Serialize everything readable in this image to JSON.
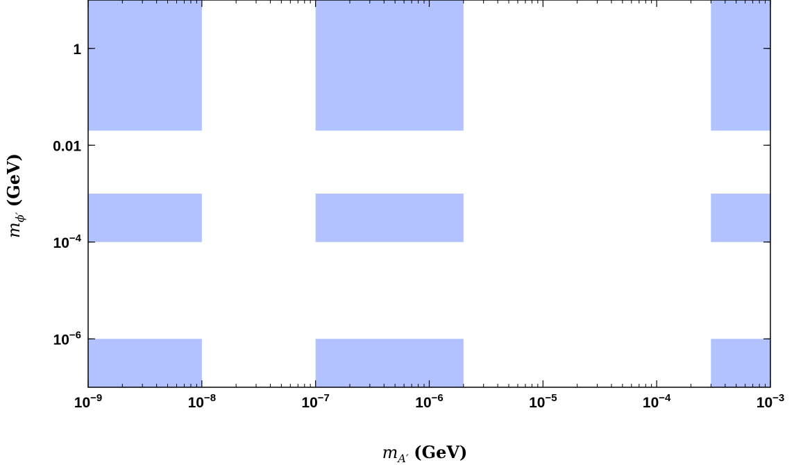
{
  "chart_data": {
    "type": "area",
    "title": "",
    "xlabel": {
      "symbol": "m",
      "subscript": "A′",
      "unit": "(GeV)"
    },
    "ylabel": {
      "symbol": "m",
      "subscript": "ϕ′",
      "unit": "(GeV)"
    },
    "x_scale": "log",
    "y_scale": "log",
    "xlim": [
      1e-09,
      0.001
    ],
    "ylim": [
      1e-07,
      10
    ],
    "grid": false,
    "x_ticks": [
      {
        "value": 1e-09,
        "base": "10",
        "exp": "−9"
      },
      {
        "value": 1e-08,
        "base": "10",
        "exp": "−8"
      },
      {
        "value": 1e-07,
        "base": "10",
        "exp": "−7"
      },
      {
        "value": 1e-06,
        "base": "10",
        "exp": "−6"
      },
      {
        "value": 1e-05,
        "base": "10",
        "exp": "−5"
      },
      {
        "value": 0.0001,
        "base": "10",
        "exp": "−4"
      },
      {
        "value": 0.001,
        "base": "10",
        "exp": "−3"
      }
    ],
    "y_ticks": [
      {
        "value": 1e-06,
        "base": "10",
        "exp": "−6"
      },
      {
        "value": 0.0001,
        "base": "10",
        "exp": "−4"
      },
      {
        "value": 0.01,
        "base": "0.01",
        "exp": ""
      },
      {
        "value": 1,
        "base": "1",
        "exp": ""
      }
    ],
    "fill_color": "#b2c1ff",
    "regions": [
      {
        "x": [
          1e-09,
          1e-08
        ],
        "y": [
          1e-07,
          1e-06
        ]
      },
      {
        "x": [
          1e-09,
          1e-08
        ],
        "y": [
          0.0001,
          0.001
        ]
      },
      {
        "x": [
          1e-09,
          1e-08
        ],
        "y": [
          0.02,
          10
        ]
      },
      {
        "x": [
          1e-07,
          2e-06
        ],
        "y": [
          1e-07,
          1e-06
        ]
      },
      {
        "x": [
          1e-07,
          2e-06
        ],
        "y": [
          0.0001,
          0.001
        ]
      },
      {
        "x": [
          1e-07,
          2e-06
        ],
        "y": [
          0.02,
          10
        ]
      },
      {
        "x": [
          0.0003,
          0.001
        ],
        "y": [
          1e-07,
          1e-06
        ]
      },
      {
        "x": [
          0.0003,
          0.001
        ],
        "y": [
          0.0001,
          0.001
        ]
      },
      {
        "x": [
          0.0003,
          0.001
        ],
        "y": [
          0.02,
          10
        ]
      }
    ]
  }
}
